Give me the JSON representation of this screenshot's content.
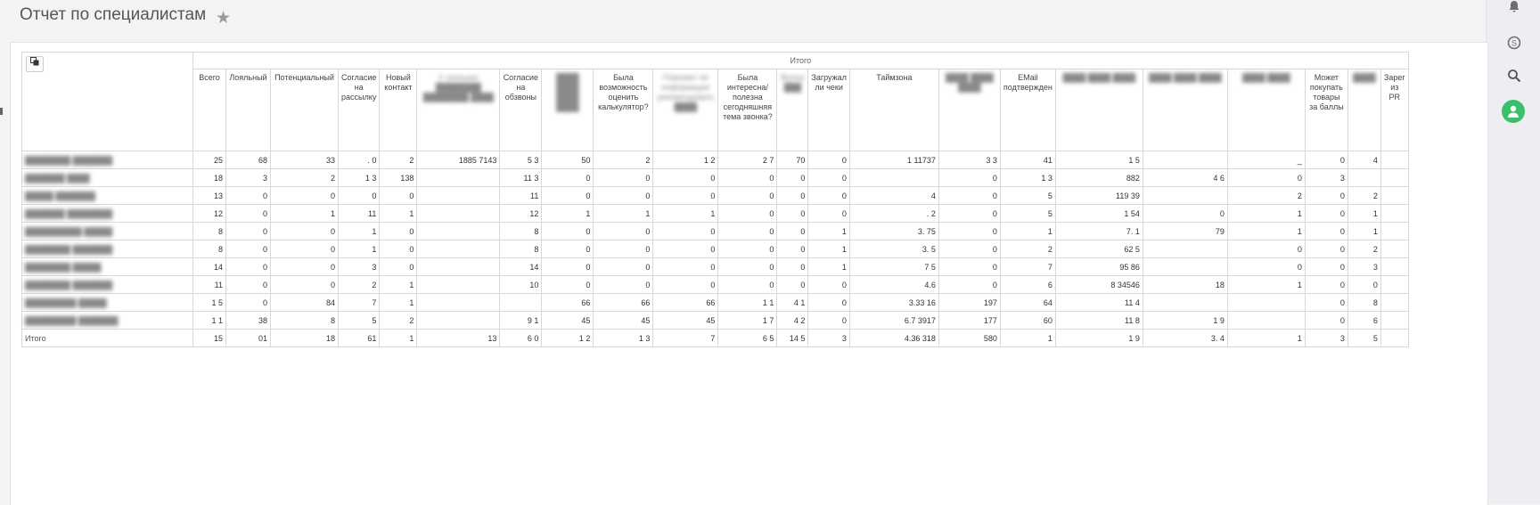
{
  "page": {
    "title": "Отчет по специалистам",
    "star_icon": "star-icon"
  },
  "right_rail": {
    "icons": [
      "bell-icon",
      "skype-icon",
      "search-icon",
      "user-avatar-icon"
    ],
    "avatar_color": "#3cbf6b"
  },
  "table": {
    "copy_icon": "copy-icon",
    "group_header": "Итого",
    "columns": [
      "Всего",
      "Лояльный",
      "Потенциальный",
      "Согласие на рассылку",
      "Новый контакт",
      "У скольких ████████ ████████ ████",
      "Согласие на обзвоны",
      "████ ████ ████ ████",
      "Была возможность оценить калькулятор?",
      "Поможет ли информация рекомендовать ████",
      "Была интересна/ полезна сегодняшняя тема звонка?",
      "Волна ███",
      "Загружал ли чеки",
      "Таймзона",
      "████ ████ ████",
      "EMail подтвержден",
      "████ ████ ████",
      "████ ████ ████",
      "████ ████",
      "Может покупать товары за баллы",
      "████",
      "Зарег из PR"
    ],
    "rows": [
      {
        "name": "████████ ███████",
        "cells": [
          "25",
          "68",
          "33",
          ". 0",
          "2",
          "1885    7143",
          "5 3",
          "50",
          "2",
          "1 2",
          "2 7",
          "70",
          "0",
          "1 11737",
          "3 3",
          "41",
          "1        5",
          "",
          "_",
          "0",
          "4",
          ""
        ]
      },
      {
        "name": "███████ ████",
        "cells": [
          "18",
          "3",
          "2",
          "1 3",
          "138",
          "",
          "11 3",
          "0",
          "0",
          "0",
          "0",
          "0",
          "0",
          "",
          "0",
          "1 3",
          "882",
          "4  6",
          "0",
          "3",
          "",
          ""
        ]
      },
      {
        "name": "█████ ███████",
        "cells": [
          "13",
          "0",
          "0",
          "0",
          "0",
          "",
          "11",
          "0",
          "0",
          "0",
          "0",
          "0",
          "0",
          "4",
          "0",
          "5",
          "119     39",
          "",
          "2",
          "0",
          "2",
          ""
        ]
      },
      {
        "name": "███████ ████████",
        "cells": [
          "12",
          "0",
          "1",
          "11",
          "1",
          "",
          "12",
          "1",
          "1",
          "1",
          "0",
          "0",
          "0",
          ". 2",
          "0",
          "5",
          "1     54",
          "0",
          "1",
          "0",
          "1",
          ""
        ]
      },
      {
        "name": "██████████ █████",
        "cells": [
          "8",
          "0",
          "0",
          "1",
          "0",
          "",
          "8",
          "0",
          "0",
          "0",
          "0",
          "0",
          "1",
          "3. 75",
          "0",
          "1",
          "7. 1",
          "79",
          "1",
          "0",
          "1",
          ""
        ]
      },
      {
        "name": "████████ ███████",
        "cells": [
          "8",
          "0",
          "0",
          "1",
          "0",
          "",
          "8",
          "0",
          "0",
          "0",
          "0",
          "0",
          "1",
          "3. 5",
          "0",
          "2",
          "62   5",
          "",
          "0",
          "0",
          "2",
          ""
        ]
      },
      {
        "name": "████████ █████",
        "cells": [
          "14",
          "0",
          "0",
          "3",
          "0",
          "",
          "14",
          "0",
          "0",
          "0",
          "0",
          "0",
          "1",
          "7        5",
          "0",
          "7",
          "95     86",
          "",
          "0",
          "0",
          "3",
          ""
        ]
      },
      {
        "name": "████████ ███████",
        "cells": [
          "11",
          "0",
          "0",
          "2",
          "1",
          "",
          "10",
          "0",
          "0",
          "0",
          "0",
          "0",
          "0",
          "4.6",
          "0",
          "6",
          "8  34546",
          "18",
          "1",
          "0",
          "0",
          ""
        ]
      },
      {
        "name": "█████████ █████",
        "cells": [
          "1 5",
          "0",
          "84",
          "7",
          "1",
          "",
          "",
          "66",
          "66",
          "66",
          "1 1",
          "4 1",
          "0",
          "3.33        16",
          "197",
          "64",
          "11      4",
          "",
          "",
          "0",
          "8",
          ""
        ]
      },
      {
        "name": "█████████ ███████",
        "cells": [
          "1 1",
          "38",
          "8",
          "5",
          "2",
          "",
          "9 1",
          "45",
          "45",
          "45",
          "1 7",
          "4 2",
          "0",
          "6.7      3917",
          "177",
          "60",
          "11      8",
          "1  9",
          "",
          "0",
          "6",
          ""
        ]
      }
    ],
    "total": {
      "label": "Итого",
      "cells": [
        "15",
        "01",
        "18",
        "61",
        "1",
        "13",
        "6 0",
        "1 2",
        "1 3",
        "7",
        "6 5",
        "14 5",
        "3",
        "4.36         318",
        "580",
        "1",
        "1        9",
        "3.    4",
        "1",
        "3",
        "5",
        ""
      ]
    }
  }
}
